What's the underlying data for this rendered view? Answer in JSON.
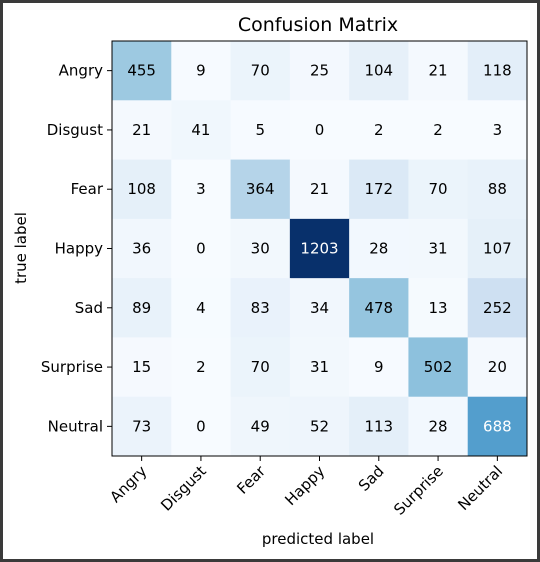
{
  "chart_data": {
    "type": "heatmap",
    "title": "Confusion Matrix",
    "xlabel": "predicted label",
    "ylabel": "true label",
    "x_categories": [
      "Angry",
      "Disgust",
      "Fear",
      "Happy",
      "Sad",
      "Surprise",
      "Neutral"
    ],
    "y_categories": [
      "Angry",
      "Disgust",
      "Fear",
      "Happy",
      "Sad",
      "Surprise",
      "Neutral"
    ],
    "matrix": [
      [
        455,
        9,
        70,
        25,
        104,
        21,
        118
      ],
      [
        21,
        41,
        5,
        0,
        2,
        2,
        3
      ],
      [
        108,
        3,
        364,
        21,
        172,
        70,
        88
      ],
      [
        36,
        0,
        30,
        1203,
        28,
        31,
        107
      ],
      [
        89,
        4,
        83,
        34,
        478,
        13,
        252
      ],
      [
        15,
        2,
        70,
        31,
        9,
        502,
        20
      ],
      [
        73,
        0,
        49,
        52,
        113,
        28,
        688
      ]
    ],
    "colormap": "Blues",
    "value_range": [
      0,
      1203
    ],
    "grid": false,
    "colors": {
      "low": "#f7fbff",
      "high": "#08306b",
      "text_dark": "#000000",
      "text_light": "#ffffff"
    }
  }
}
